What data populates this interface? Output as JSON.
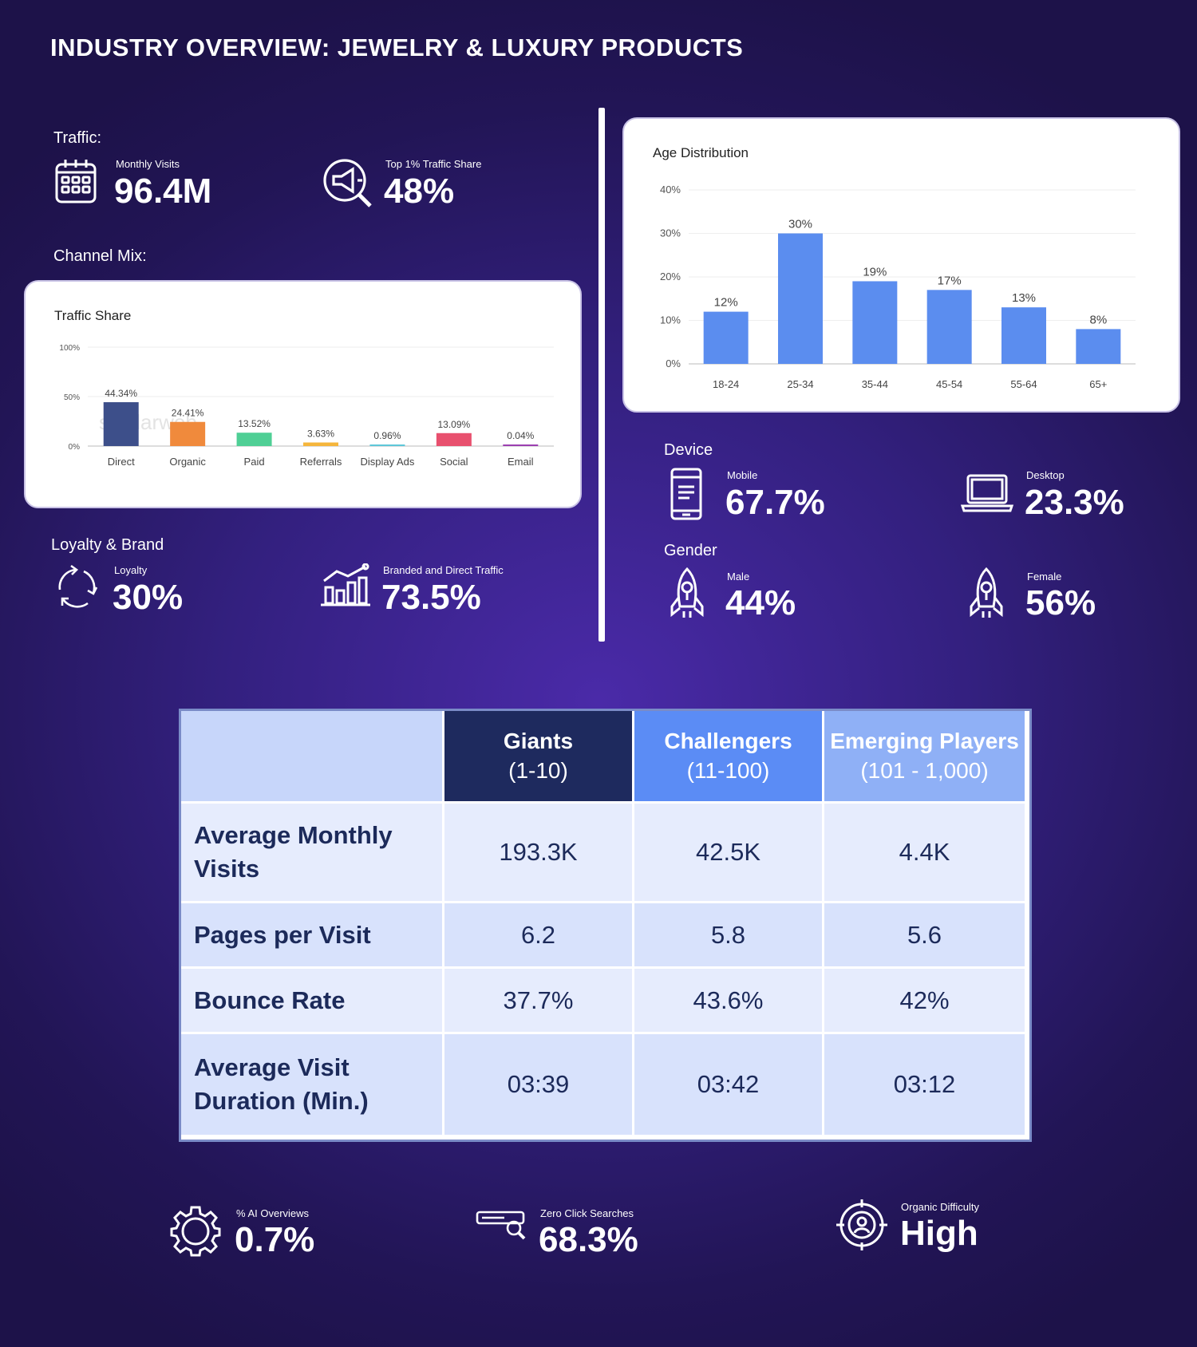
{
  "title": "INDUSTRY OVERVIEW: JEWELRY & LUXURY PRODUCTS",
  "traffic": {
    "section_label": "Traffic:",
    "monthly_visits_label": "Monthly Visits",
    "monthly_visits_value": "96.4M",
    "top1_label": "Top 1% Traffic Share",
    "top1_value": "48%"
  },
  "channel_mix": {
    "section_label": "Channel Mix:",
    "card_title": "Traffic Share"
  },
  "loyalty": {
    "section_label": "Loyalty & Brand",
    "loyalty_label": "Loyalty",
    "loyalty_value": "30%",
    "branded_label": "Branded and Direct Traffic",
    "branded_value": "73.5%"
  },
  "age": {
    "card_title": "Age Distribution"
  },
  "device": {
    "section_label": "Device",
    "mobile_label": "Mobile",
    "mobile_value": "67.7%",
    "desktop_label": "Desktop",
    "desktop_value": "23.3%"
  },
  "gender": {
    "section_label": "Gender",
    "male_label": "Male",
    "male_value": "44%",
    "female_label": "Female",
    "female_value": "56%"
  },
  "table": {
    "columns": [
      {
        "name": "Giants",
        "range": "(1-10)"
      },
      {
        "name": "Challengers",
        "range": "(11-100)"
      },
      {
        "name": "Emerging Players",
        "range": "(101 - 1,000)"
      }
    ],
    "rows": [
      {
        "metric": "Average Monthly Visits",
        "values": [
          "193.3K",
          "42.5K",
          "4.4K"
        ]
      },
      {
        "metric": "Pages per Visit",
        "values": [
          "6.2",
          "5.8",
          "5.6"
        ]
      },
      {
        "metric": "Bounce Rate",
        "values": [
          "37.7%",
          "43.6%",
          "42%"
        ]
      },
      {
        "metric": "Average Visit Duration (Min.)",
        "values": [
          "03:39",
          "03:42",
          "03:12"
        ]
      }
    ]
  },
  "bottom": {
    "ai_label": "% AI Overviews",
    "ai_value": "0.7%",
    "zero_label": "Zero Click Searches",
    "zero_value": "68.3%",
    "difficulty_label": "Organic Difficulty",
    "difficulty_value": "High"
  },
  "colors": {
    "giants": "#1e2a5e",
    "challengers": "#5b8cf5",
    "emerging": "#8fb0f6",
    "age_bar": "#5b8def"
  },
  "chart_data": [
    {
      "type": "bar",
      "title": "Traffic Share",
      "categories": [
        "Direct",
        "Organic",
        "Paid",
        "Referrals",
        "Display Ads",
        "Social",
        "Email"
      ],
      "values": [
        44.34,
        24.41,
        13.52,
        3.63,
        0.96,
        13.09,
        0.04
      ],
      "data_labels": [
        "44.34%",
        "24.41%",
        "13.52%",
        "3.63%",
        "0.96%",
        "13.09%",
        "0.04%"
      ],
      "bar_colors": [
        "#3d4f8a",
        "#f08a3c",
        "#4fcf95",
        "#f5b63c",
        "#5ec7d9",
        "#e8506e",
        "#9b3fb0"
      ],
      "yticks": [
        "0%",
        "50%",
        "100%"
      ],
      "ylim": [
        0,
        100
      ],
      "grid": true,
      "watermark": "similarweb"
    },
    {
      "type": "bar",
      "title": "Age Distribution",
      "categories": [
        "18-24",
        "25-34",
        "35-44",
        "45-54",
        "55-64",
        "65+"
      ],
      "values": [
        12,
        30,
        19,
        17,
        13,
        8
      ],
      "data_labels": [
        "12%",
        "30%",
        "19%",
        "17%",
        "13%",
        "8%"
      ],
      "yticks": [
        "0%",
        "10%",
        "20%",
        "30%",
        "40%"
      ],
      "ylim": [
        0,
        40
      ],
      "grid": true
    }
  ]
}
